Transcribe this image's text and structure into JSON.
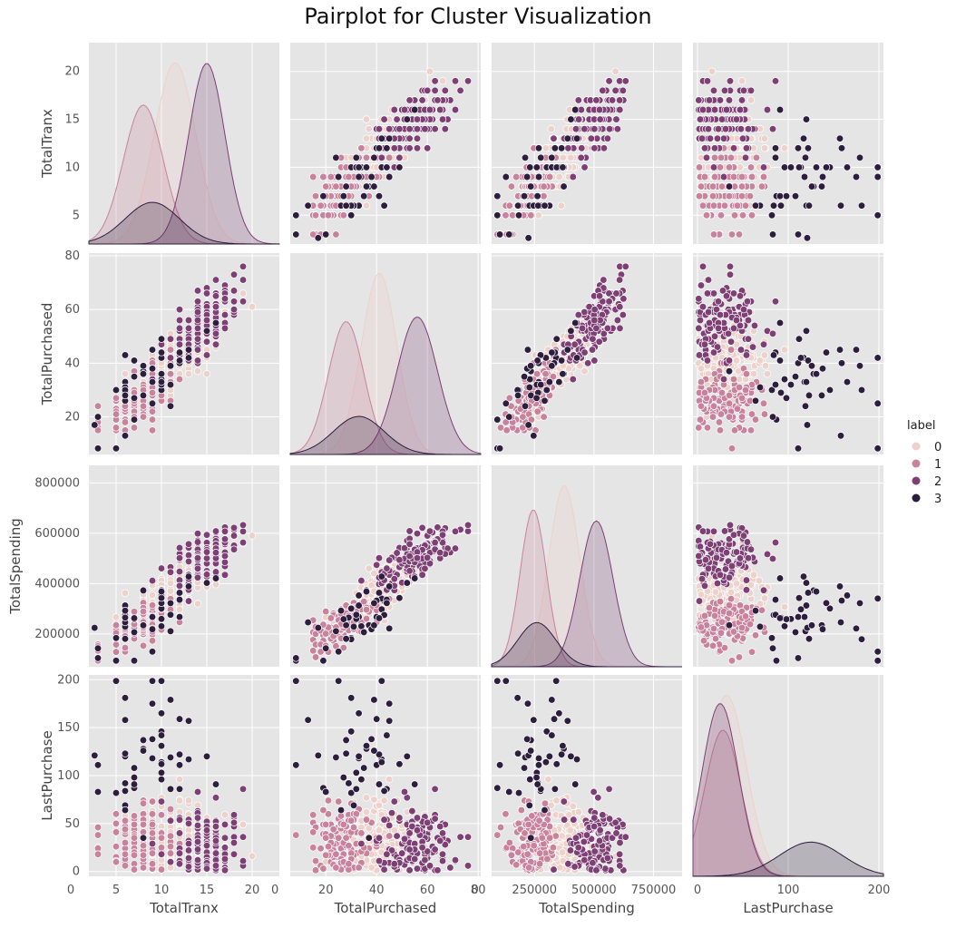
{
  "title": "Pairplot for Cluster Visualization",
  "chart_data": {
    "type": "pairplot",
    "variables": [
      "TotalTranx",
      "TotalPurchased",
      "TotalSpending",
      "LastPurchase"
    ],
    "legend": {
      "title": "label",
      "labels": [
        "0",
        "1",
        "2",
        "3"
      ],
      "placement": "right"
    },
    "colors": [
      "#edd1cb",
      "#c8829b",
      "#7d3f74",
      "#2d1e3e"
    ],
    "grid": true,
    "axes": {
      "TotalTranx": {
        "range": [
          2,
          23
        ],
        "ticks": [
          5,
          10,
          15,
          20
        ],
        "xticks": [
          0,
          5,
          10,
          15,
          20
        ],
        "ticklabels": [
          "5",
          "10",
          "15",
          "20"
        ],
        "xticklabels": [
          "0",
          "5",
          "10",
          "15",
          "20"
        ]
      },
      "TotalPurchased": {
        "range": [
          6,
          81
        ],
        "ticks": [
          20,
          40,
          60,
          80
        ],
        "xticks": [
          0,
          20,
          40,
          60,
          80
        ],
        "ticklabels": [
          "20",
          "40",
          "60",
          "80"
        ],
        "xticklabels": [
          "0",
          "20",
          "40",
          "60",
          "80"
        ]
      },
      "TotalSpending": {
        "range": [
          70000,
          870000
        ],
        "ticks": [
          200000,
          400000,
          600000,
          800000
        ],
        "xticks": [
          0,
          250000,
          500000,
          750000
        ],
        "ticklabels": [
          "200000",
          "400000",
          "600000",
          "800000"
        ],
        "xticklabels": [
          "0",
          "250000",
          "500000",
          "750000"
        ]
      },
      "LastPurchase": {
        "range": [
          -5,
          205
        ],
        "ticks": [
          0,
          50,
          100,
          150,
          200
        ],
        "xticks": [
          0,
          100,
          200
        ],
        "ticklabels": [
          "0",
          "50",
          "100",
          "150",
          "200"
        ],
        "xticklabels": [
          "0",
          "100",
          "200"
        ]
      }
    },
    "clusters": [
      {
        "label": "0",
        "TotalTranx": [
          11.5,
          2.3
        ],
        "TotalPurchased": [
          41,
          7
        ],
        "TotalSpending": [
          375000,
          65000
        ],
        "LastPurchase": [
          32,
          22
        ]
      },
      {
        "label": "1",
        "TotalTranx": [
          8,
          2.2
        ],
        "TotalPurchased": [
          28,
          7
        ],
        "TotalSpending": [
          245000,
          55000
        ],
        "LastPurchase": [
          28,
          20
        ]
      },
      {
        "label": "2",
        "TotalTranx": [
          15,
          2
        ],
        "TotalPurchased": [
          56,
          8
        ],
        "TotalSpending": [
          510000,
          70000
        ],
        "LastPurchase": [
          25,
          20
        ]
      },
      {
        "label": "3",
        "TotalTranx": [
          9,
          3
        ],
        "TotalPurchased": [
          33,
          10
        ],
        "TotalSpending": [
          260000,
          80000
        ],
        "LastPurchase": [
          125,
          35
        ]
      }
    ]
  }
}
